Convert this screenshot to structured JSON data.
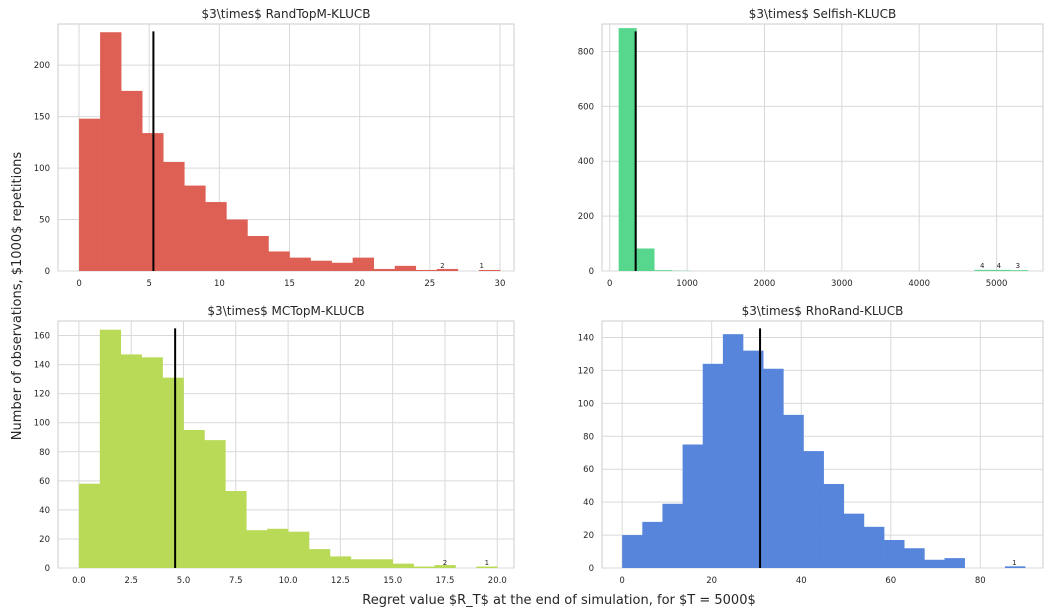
{
  "figure": {
    "xlabel": "Regret value $R_T$ at the end of simulation, for $T = 5000$",
    "ylabel": "Number of observations, $1000$ repetitions"
  },
  "chart_data": [
    {
      "type": "bar",
      "title": "$3\\times$ RandTopM-KLUCB",
      "color": "#de6055",
      "xlim": [
        -1.5,
        31
      ],
      "ylim": [
        0,
        240
      ],
      "xticks": [
        0,
        5,
        10,
        15,
        20,
        25,
        30
      ],
      "xtick_labels": [
        "0",
        "5",
        "10",
        "15",
        "20",
        "25",
        "30"
      ],
      "yticks": [
        0,
        50,
        100,
        150,
        200
      ],
      "ytick_labels": [
        "0",
        "50",
        "100",
        "150",
        "200"
      ],
      "bin_edges": [
        0,
        1.5,
        3,
        4.5,
        6,
        7.5,
        9,
        10.5,
        12,
        13.5,
        15,
        16.5,
        18,
        19.5,
        21,
        22.5,
        24,
        25.5,
        27,
        28.5,
        30
      ],
      "values": [
        148,
        232,
        175,
        134,
        106,
        83,
        67,
        50,
        34,
        19,
        13,
        10,
        8,
        13,
        2,
        5,
        1,
        2,
        0,
        1
      ],
      "mean": 5.3,
      "bar_labels": [
        {
          "x": 25.9,
          "text": "2"
        },
        {
          "x": 28.7,
          "text": "1"
        }
      ]
    },
    {
      "type": "bar",
      "title": "$3\\times$ Selfish-KLUCB",
      "color": "#57d68d",
      "xlim": [
        -100,
        5600
      ],
      "ylim": [
        0,
        900
      ],
      "xticks": [
        0,
        1000,
        2000,
        3000,
        4000,
        5000
      ],
      "xtick_labels": [
        "0",
        "1000",
        "2000",
        "3000",
        "4000",
        "5000"
      ],
      "yticks": [
        0,
        200,
        400,
        600,
        800
      ],
      "ytick_labels": [
        "0",
        "200",
        "400",
        "600",
        "800"
      ],
      "bin_edges": [
        115,
        345,
        575,
        805,
        1035,
        1265,
        1495,
        1725,
        1955,
        2185,
        2415,
        2645,
        2875,
        3105,
        3335,
        3565,
        3795,
        4025,
        4255,
        4485,
        4715,
        4945,
        5175,
        5405
      ],
      "values": [
        885,
        82,
        3,
        1,
        0,
        0,
        0,
        0,
        0,
        0,
        0,
        0,
        0,
        0,
        0,
        0,
        0,
        0,
        0,
        0,
        4,
        4,
        3
      ],
      "mean": 335,
      "bar_labels": [
        {
          "x": 4815,
          "text": "4"
        },
        {
          "x": 5030,
          "text": "4"
        },
        {
          "x": 5275,
          "text": "3"
        }
      ]
    },
    {
      "type": "bar",
      "title": "$3\\times$ MCTopM-KLUCB",
      "color": "#b9da57",
      "xlim": [
        -1,
        20.8
      ],
      "ylim": [
        0,
        170
      ],
      "xticks": [
        0,
        2.5,
        5,
        7.5,
        10,
        12.5,
        15,
        17.5,
        20
      ],
      "xtick_labels": [
        "0.0",
        "2.5",
        "5.0",
        "7.5",
        "10.0",
        "12.5",
        "15.0",
        "17.5",
        "20.0"
      ],
      "yticks": [
        0,
        20,
        40,
        60,
        80,
        100,
        120,
        140,
        160
      ],
      "ytick_labels": [
        "0",
        "20",
        "40",
        "60",
        "80",
        "100",
        "120",
        "140",
        "160"
      ],
      "bin_edges": [
        0,
        1,
        2,
        3,
        4,
        5,
        6,
        7,
        8,
        9,
        10,
        11,
        12,
        13,
        14,
        15,
        16,
        17,
        18,
        19,
        20
      ],
      "values": [
        58,
        164,
        147,
        145,
        131,
        95,
        88,
        53,
        26,
        27,
        25,
        13,
        8,
        6,
        6,
        3,
        1,
        2,
        0,
        1
      ],
      "mean": 4.6,
      "bar_labels": [
        {
          "x": 17.5,
          "text": "2"
        },
        {
          "x": 19.5,
          "text": "1"
        }
      ]
    },
    {
      "type": "bar",
      "title": "$3\\times$ RhoRand-KLUCB",
      "color": "#5685db",
      "xlim": [
        -4.5,
        94
      ],
      "ylim": [
        0,
        150
      ],
      "xticks": [
        0,
        20,
        40,
        60,
        80
      ],
      "xtick_labels": [
        "0",
        "20",
        "40",
        "60",
        "80"
      ],
      "yticks": [
        0,
        20,
        40,
        60,
        80,
        100,
        120,
        140
      ],
      "ytick_labels": [
        "0",
        "20",
        "40",
        "60",
        "80",
        "100",
        "120",
        "140"
      ],
      "bin_edges": [
        0,
        4.5,
        9,
        13.5,
        18,
        22.5,
        27,
        31.5,
        36,
        40.5,
        45,
        49.5,
        54,
        58.5,
        63,
        67.5,
        72,
        76.5,
        81,
        85.5,
        90
      ],
      "values": [
        20,
        28,
        39,
        75,
        124,
        142,
        132,
        121,
        93,
        71,
        51,
        33,
        25,
        17,
        12,
        5,
        6,
        0,
        0,
        1
      ],
      "mean": 30.8,
      "bar_labels": [
        {
          "x": 87.6,
          "text": "1"
        }
      ]
    }
  ]
}
